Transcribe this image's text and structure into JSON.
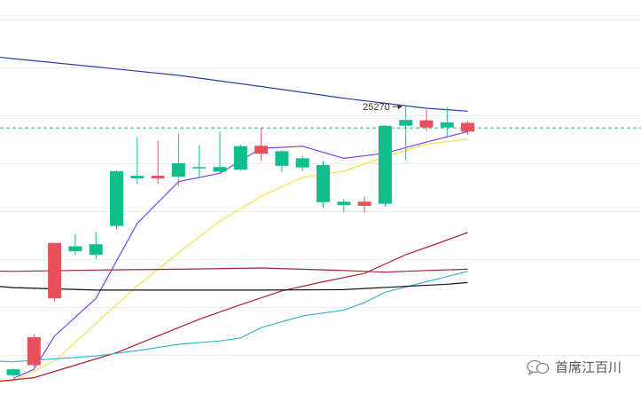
{
  "chart_data": {
    "type": "candlestick",
    "ylim": [
      24600,
      25500
    ],
    "grid": true,
    "reference_line": {
      "value": 25219,
      "color": "#26a69a",
      "style": "dashed"
    },
    "annotations": [
      {
        "text": "25270",
        "candle_index": 19
      }
    ],
    "candles": [
      {
        "open": 24640,
        "high": 24642,
        "low": 24622,
        "close": 24626
      },
      {
        "open": 24650,
        "high": 24725,
        "low": 24645,
        "close": 24717
      },
      {
        "open": 24810,
        "high": 24943,
        "low": 24802,
        "close": 24943
      },
      {
        "open": 24935,
        "high": 24964,
        "low": 24914,
        "close": 24923
      },
      {
        "open": 24940,
        "high": 24970,
        "low": 24904,
        "close": 24915
      },
      {
        "open": 25115,
        "high": 25118,
        "low": 24975,
        "close": 24984
      },
      {
        "open": 25104,
        "high": 25197,
        "low": 25084,
        "close": 25098
      },
      {
        "open": 25098,
        "high": 25188,
        "low": 25085,
        "close": 25104
      },
      {
        "open": 25134,
        "high": 25205,
        "low": 25080,
        "close": 25102
      },
      {
        "open": 25125,
        "high": 25178,
        "low": 25100,
        "close": 25123
      },
      {
        "open": 25125,
        "high": 25210,
        "low": 25110,
        "close": 25114
      },
      {
        "open": 25175,
        "high": 25179,
        "low": 25116,
        "close": 25119
      },
      {
        "open": 25157,
        "high": 25218,
        "low": 25140,
        "close": 25176
      },
      {
        "open": 25163,
        "high": 25166,
        "low": 25113,
        "close": 25128
      },
      {
        "open": 25146,
        "high": 25152,
        "low": 25115,
        "close": 25124
      },
      {
        "open": 25130,
        "high": 25140,
        "low": 25028,
        "close": 25041
      },
      {
        "open": 25042,
        "high": 25049,
        "low": 25017,
        "close": 25034
      },
      {
        "open": 25032,
        "high": 25055,
        "low": 25016,
        "close": 25042
      },
      {
        "open": 25224,
        "high": 25226,
        "low": 25030,
        "close": 25037
      },
      {
        "open": 25238,
        "high": 25270,
        "low": 25141,
        "close": 25224
      },
      {
        "open": 25220,
        "high": 25262,
        "low": 25212,
        "close": 25237
      },
      {
        "open": 25232,
        "high": 25268,
        "low": 25198,
        "close": 25220
      },
      {
        "open": 25210,
        "high": 25236,
        "low": 25202,
        "close": 25231
      }
    ],
    "series": [
      {
        "color": "#2b3fa5",
        "points": [
          [
            -2,
            25396
          ],
          [
            0,
            25385
          ],
          [
            4,
            25365
          ],
          [
            8,
            25345
          ],
          [
            12,
            25318
          ],
          [
            16,
            25290
          ],
          [
            20,
            25266
          ],
          [
            22,
            25259
          ]
        ]
      },
      {
        "color": "#7b3ff2",
        "points": [
          [
            0,
            24618
          ],
          [
            1,
            24640
          ],
          [
            2,
            24720
          ],
          [
            4,
            24810
          ],
          [
            6,
            24990
          ],
          [
            8,
            25090
          ],
          [
            10,
            25110
          ],
          [
            12,
            25170
          ],
          [
            14,
            25175
          ],
          [
            16,
            25146
          ],
          [
            18,
            25158
          ],
          [
            20,
            25185
          ],
          [
            22,
            25210
          ]
        ]
      },
      {
        "color": "#f4e04d",
        "points": [
          [
            -1,
            24610
          ],
          [
            0,
            24612
          ],
          [
            2,
            24660
          ],
          [
            4,
            24750
          ],
          [
            6,
            24840
          ],
          [
            8,
            24920
          ],
          [
            10,
            24995
          ],
          [
            12,
            25055
          ],
          [
            14,
            25100
          ],
          [
            16,
            25115
          ],
          [
            18,
            25150
          ],
          [
            20,
            25180
          ],
          [
            22,
            25192
          ]
        ]
      },
      {
        "color": "#b01e2e",
        "points": [
          [
            -1,
            24610
          ],
          [
            1,
            24620
          ],
          [
            3,
            24650
          ],
          [
            5,
            24680
          ],
          [
            7,
            24720
          ],
          [
            9,
            24760
          ],
          [
            11,
            24795
          ],
          [
            13,
            24828
          ],
          [
            15,
            24850
          ],
          [
            17,
            24870
          ],
          [
            19,
            24915
          ],
          [
            21,
            24950
          ],
          [
            22,
            24968
          ]
        ]
      },
      {
        "color": "#3cb4d8",
        "points": [
          [
            -1,
            24660
          ],
          [
            0,
            24658
          ],
          [
            2,
            24665
          ],
          [
            4,
            24672
          ],
          [
            6,
            24685
          ],
          [
            8,
            24700
          ],
          [
            10,
            24708
          ],
          [
            11,
            24715
          ],
          [
            12,
            24740
          ],
          [
            14,
            24768
          ],
          [
            16,
            24782
          ],
          [
            17,
            24800
          ],
          [
            18,
            24825
          ],
          [
            20,
            24850
          ],
          [
            22,
            24875
          ]
        ]
      },
      {
        "color": "#a4232f",
        "points": [
          [
            -1,
            24876
          ],
          [
            0,
            24875
          ],
          [
            4,
            24878
          ],
          [
            8,
            24880
          ],
          [
            12,
            24883
          ],
          [
            16,
            24877
          ],
          [
            18,
            24873
          ],
          [
            20,
            24877
          ],
          [
            22,
            24880
          ]
        ]
      },
      {
        "color": "#111111",
        "points": [
          [
            -1,
            24840
          ],
          [
            0,
            24836
          ],
          [
            4,
            24830
          ],
          [
            8,
            24830
          ],
          [
            12,
            24830
          ],
          [
            16,
            24831
          ],
          [
            19,
            24839
          ],
          [
            21,
            24844
          ],
          [
            22,
            24848
          ]
        ]
      }
    ],
    "colors": {
      "up": "#e8505b",
      "down": "#0ebf8c",
      "grid": "#ededed"
    }
  },
  "watermark": {
    "text": "首席江百川",
    "icon": "chat-bubbles-icon"
  }
}
